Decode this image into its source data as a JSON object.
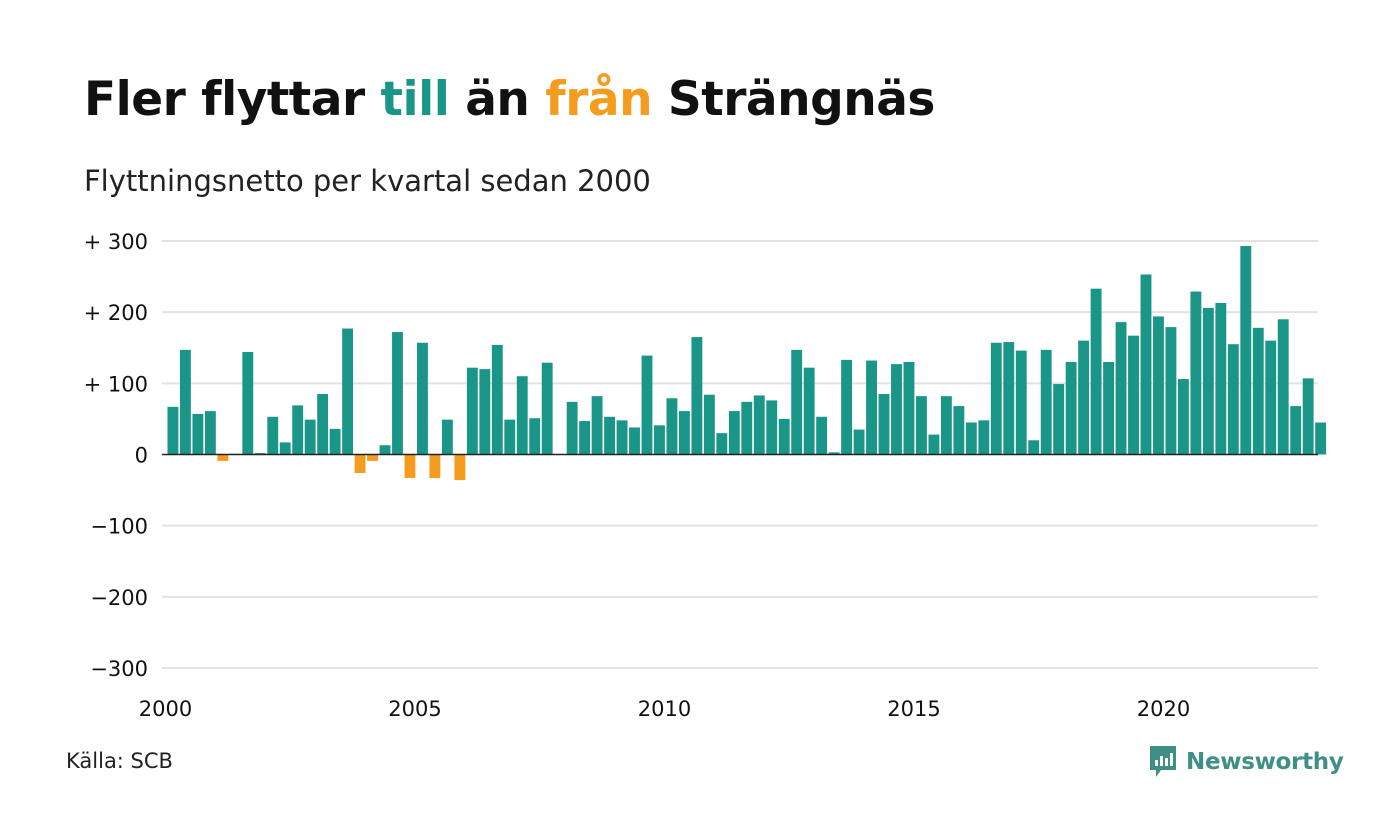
{
  "title": {
    "part1": "Fler flyttar ",
    "part2": "till",
    "part3": " än ",
    "part4": "från",
    "part5": " Strängnäs"
  },
  "subtitle": "Flyttningsnetto per kvartal sedan 2000",
  "source": "Källa: SCB",
  "brand": "Newsworthy",
  "colors": {
    "positive": "#1a9688",
    "negative": "#f39c1e",
    "grid": "#e2e2e2",
    "text": "#111111",
    "brand": "#3f8f86"
  },
  "chart_data": {
    "type": "bar",
    "title": "Fler flyttar till än från Strängnäs",
    "subtitle": "Flyttningsnetto per kvartal sedan 2000",
    "x_tick_labels": [
      "2000",
      "2005",
      "2010",
      "2015",
      "2020"
    ],
    "y_tick_labels": [
      "+ 300",
      "+ 200",
      "+ 100",
      "0",
      "−100",
      "−200",
      "−300"
    ],
    "y_ticks": [
      300,
      200,
      100,
      0,
      -100,
      -200,
      -300
    ],
    "ylim": [
      -300,
      300
    ],
    "start_year": 2000,
    "grid": true,
    "values": [
      67,
      147,
      57,
      61,
      -9,
      1,
      144,
      2,
      53,
      17,
      69,
      49,
      85,
      36,
      177,
      -26,
      -9,
      13,
      172,
      -33,
      157,
      -33,
      49,
      -36,
      122,
      120,
      154,
      49,
      110,
      51,
      129,
      0,
      74,
      47,
      82,
      53,
      48,
      38,
      139,
      41,
      79,
      61,
      165,
      84,
      30,
      61,
      74,
      83,
      76,
      50,
      147,
      122,
      53,
      3,
      133,
      35,
      132,
      85,
      127,
      130,
      82,
      28,
      82,
      68,
      45,
      48,
      157,
      158,
      146,
      20,
      147,
      99,
      130,
      160,
      233,
      130,
      186,
      167,
      253,
      194,
      179,
      106,
      229,
      206,
      213,
      155,
      293,
      178,
      160,
      190,
      68,
      107,
      45
    ]
  }
}
